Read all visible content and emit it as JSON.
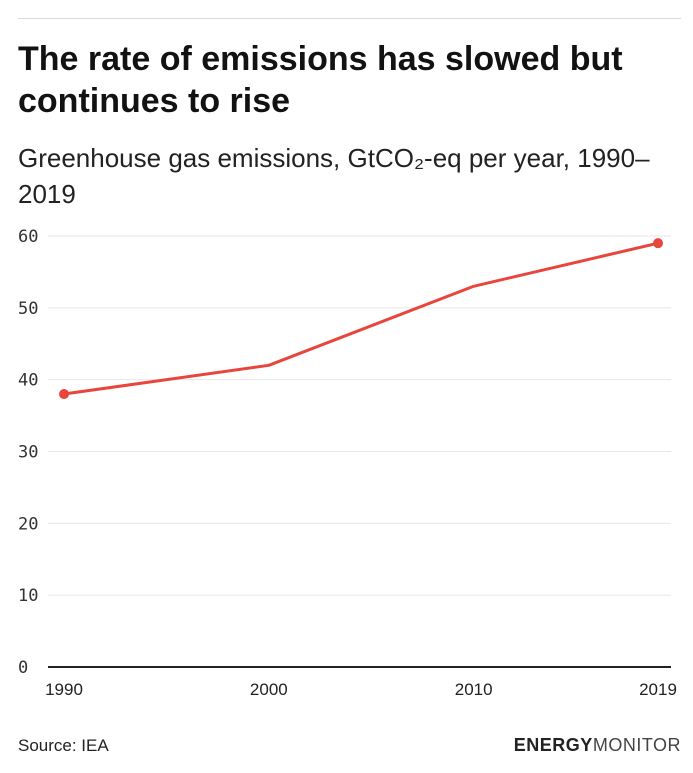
{
  "header": {
    "title": "The rate of emissions has slowed but continues to rise",
    "subtitle": "Greenhouse gas emissions, GtCO₂-eq per year, 1990–2019"
  },
  "chart_data": {
    "type": "line",
    "x": [
      "1990",
      "2000",
      "2010",
      "2019"
    ],
    "series": [
      {
        "values": [
          38,
          42,
          53,
          59
        ],
        "color": "#e8463c"
      }
    ],
    "ylim": [
      0,
      60
    ],
    "yticks": [
      0,
      10,
      20,
      30,
      40,
      50,
      60
    ],
    "xticks": [
      "1990",
      "2000",
      "2010",
      "2019"
    ],
    "grid": true,
    "endpoint_markers": true
  },
  "footer": {
    "source": "Source: IEA",
    "brand_bold": "ENERGY",
    "brand_light": "MONITOR"
  },
  "colors": {
    "accent": "#e8463c",
    "grid": "#e6e6e6",
    "axis": "#222222"
  }
}
